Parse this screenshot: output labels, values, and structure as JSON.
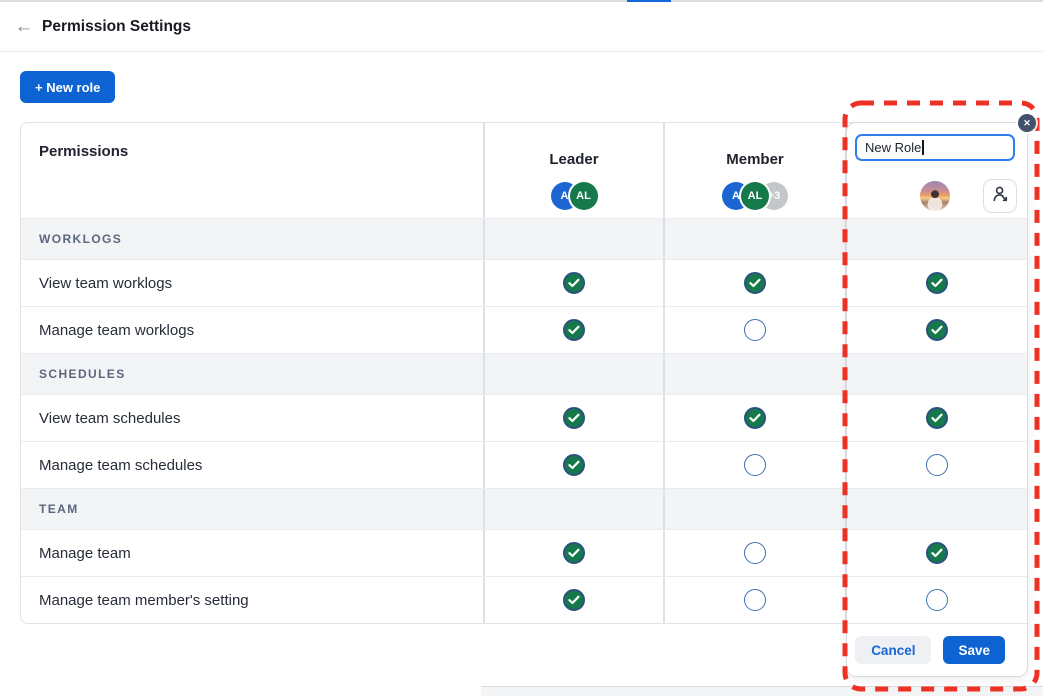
{
  "top": {
    "title": "Permission Settings"
  },
  "toolbar": {
    "new_role_label": "+ New role"
  },
  "table": {
    "permissions_header": "Permissions",
    "roles": [
      {
        "label": "Leader",
        "avatars": [
          {
            "text": "A",
            "bg": "#1b66d1"
          },
          {
            "text": "AL",
            "bg": "#15794a"
          }
        ]
      },
      {
        "label": "Member",
        "avatars": [
          {
            "text": "A",
            "bg": "#1b66d1"
          },
          {
            "text": "AL",
            "bg": "#15794a"
          },
          {
            "text": "+3",
            "bg": "#c4c6ca"
          }
        ]
      }
    ],
    "rows": [
      {
        "type": "section",
        "label": "WORKLOGS"
      },
      {
        "type": "permission",
        "label": "View team worklogs",
        "leader": "checked",
        "member": "checked",
        "new_role": "checked"
      },
      {
        "type": "permission",
        "label": "Manage team worklogs",
        "leader": "checked",
        "member": "unchecked",
        "new_role": "checked"
      },
      {
        "type": "section",
        "label": "SCHEDULES"
      },
      {
        "type": "permission",
        "label": "View team schedules",
        "leader": "checked",
        "member": "checked",
        "new_role": "checked"
      },
      {
        "type": "permission",
        "label": "Manage team schedules",
        "leader": "checked",
        "member": "unchecked",
        "new_role": "unchecked"
      },
      {
        "type": "section",
        "label": "TEAM"
      },
      {
        "type": "permission",
        "label": "Manage team",
        "leader": "checked",
        "member": "unchecked",
        "new_role": "checked"
      },
      {
        "type": "permission",
        "label": "Manage team member's setting",
        "leader": "checked",
        "member": "unchecked",
        "new_role": "unchecked"
      }
    ]
  },
  "new_role_panel": {
    "name_input_value": "New Role",
    "cancel_label": "Cancel",
    "save_label": "Save",
    "close_icon": "✕"
  },
  "colors": {
    "accent_blue": "#0d63d1",
    "check_green": "#15794a",
    "unchecked_ring_blue": "#3c6fb0",
    "dashed_border_red": "#ee3124",
    "section_bg": "#f3f4f6"
  }
}
